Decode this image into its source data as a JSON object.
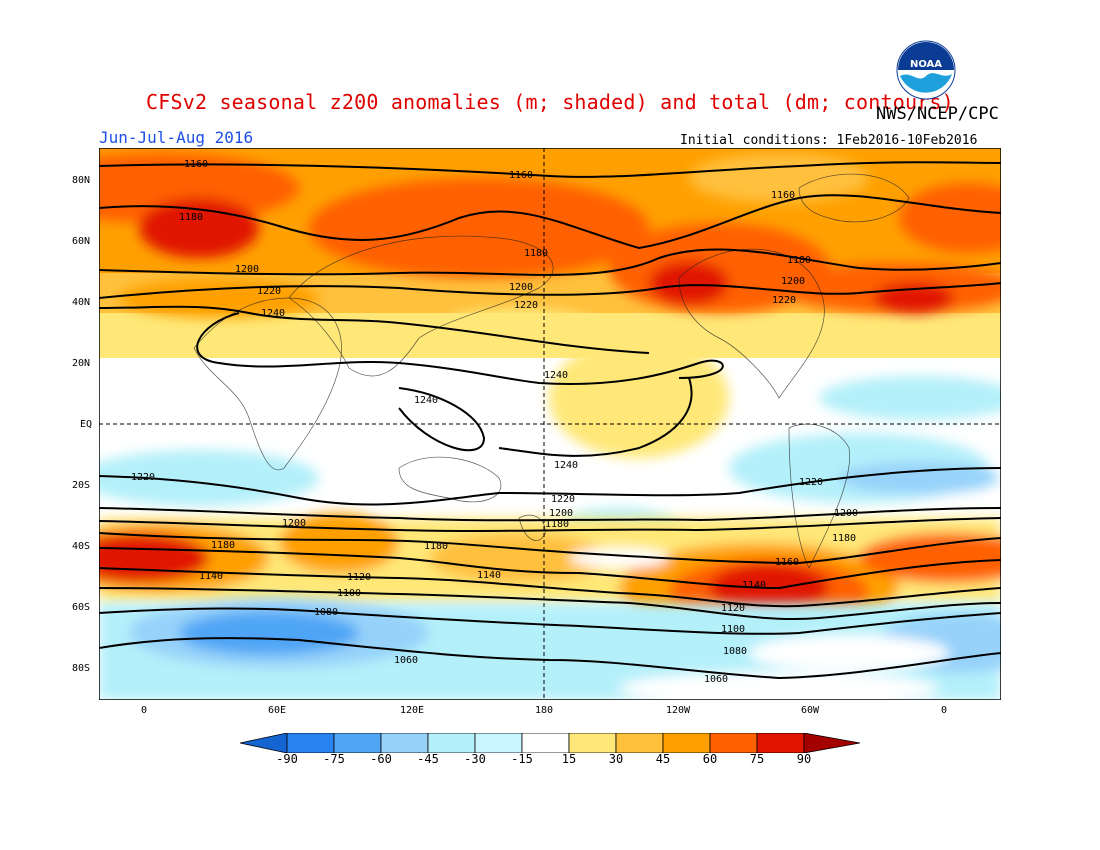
{
  "title": "CFSv2 seasonal z200 anomalies (m; shaded) and total (dm; contours)",
  "agency": "NWS/NCEP/CPC",
  "season": "Jun-Jul-Aug 2016",
  "initial_conditions": "Initial conditions: 1Feb2016-10Feb2016",
  "logo_text": "NOAA",
  "lat_labels": [
    "80N",
    "60N",
    "40N",
    "20N",
    "EQ",
    "20S",
    "40S",
    "60S",
    "80S"
  ],
  "lon_labels": [
    "0",
    "60E",
    "120E",
    "180",
    "120W",
    "60W",
    "0"
  ],
  "colorbar": {
    "labels": [
      "-90",
      "-75",
      "-60",
      "-45",
      "-30",
      "-15",
      "15",
      "30",
      "45",
      "60",
      "75",
      "90"
    ],
    "colors": [
      "#1464d2",
      "#2882f0",
      "#50a5f5",
      "#96d2fa",
      "#b4f0fa",
      "#ffffff",
      "#ffe878",
      "#ffc03c",
      "#ffa000",
      "#ff6000",
      "#e11400",
      "#a50000"
    ]
  },
  "contour_labels": [
    "1160",
    "1180",
    "1200",
    "1220",
    "1240",
    "1140",
    "1120",
    "1100",
    "1080",
    "1060"
  ],
  "colors": {
    "title": "#e00000",
    "season": "#1e50e6"
  }
}
